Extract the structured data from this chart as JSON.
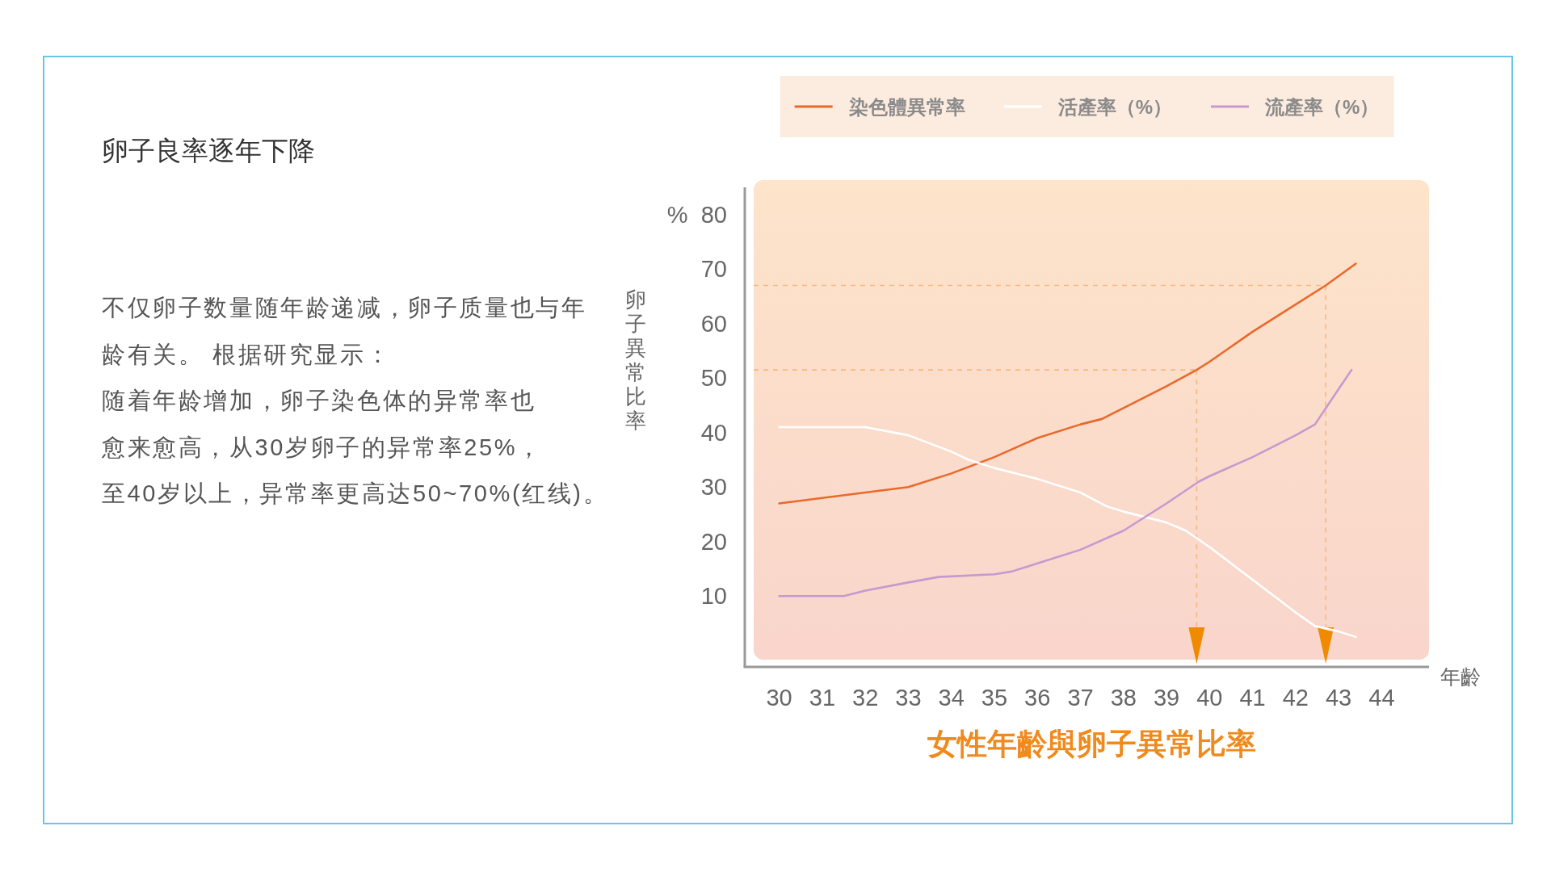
{
  "chart_data": {
    "type": "line",
    "title": "女性年齡與卵子異常比率",
    "xlabel": "年齡",
    "ylabel": "卵子異常比率",
    "xlim": [
      29.2,
      45.1
    ],
    "xticks": [
      30,
      31,
      32,
      33,
      34,
      35,
      36,
      37,
      38,
      39,
      40,
      41,
      42,
      43,
      44
    ],
    "ylim": [
      -3,
      85
    ],
    "yticks": [
      10,
      20,
      30,
      40,
      50,
      60,
      70,
      {
        "value": 80,
        "label": "%  80"
      }
    ],
    "grid": false,
    "legend": "top",
    "marker": "none",
    "line_style": "solid",
    "series": [
      {
        "name": "染色體異常率",
        "color": "#e9692c",
        "x": [
          30,
          31,
          32,
          33,
          34,
          35,
          36,
          37,
          37.5,
          38,
          39,
          39.7,
          40,
          41,
          42,
          42.7,
          43.4
        ],
        "values": [
          27,
          28,
          29,
          30,
          32.5,
          35.5,
          39,
          41.5,
          42.5,
          44.5,
          48.5,
          51.5,
          53,
          58.5,
          63.5,
          67,
          71
        ]
      },
      {
        "name": "活產率（%）",
        "color": "#ffffff",
        "x": [
          30,
          31,
          32,
          33,
          34,
          34.4,
          35,
          36,
          37,
          37.6,
          38,
          39,
          39.45,
          40,
          41,
          42,
          42.45,
          43,
          43.4
        ],
        "values": [
          41,
          41,
          41,
          39.5,
          36.5,
          35,
          33.5,
          31.5,
          29,
          26.5,
          25.5,
          23.5,
          22,
          19,
          13,
          7,
          4.5,
          3.5,
          2.5
        ]
      },
      {
        "name": "流產率（%）",
        "color": "#c799cf",
        "x": [
          30,
          31.5,
          32,
          33,
          33.7,
          35,
          35.4,
          36,
          37,
          38,
          39,
          39.75,
          40,
          41,
          42,
          42.45,
          43,
          43.3
        ],
        "values": [
          10,
          10,
          11,
          12.5,
          13.5,
          14,
          14.5,
          16,
          18.5,
          22,
          27,
          31,
          32,
          35.5,
          39.5,
          41.5,
          48,
          51.5
        ]
      }
    ],
    "ref_lines": [
      {
        "axis": "y",
        "value": 51.5,
        "color": "#f6b880",
        "line_style": "dashed"
      },
      {
        "axis": "y",
        "value": 67,
        "color": "#f6b880",
        "line_style": "dashed"
      },
      {
        "axis": "x",
        "value": 39.7,
        "color": "#f6b880",
        "line_style": "dashed"
      },
      {
        "axis": "x",
        "value": 42.7,
        "color": "#f6b880",
        "line_style": "dashed"
      }
    ],
    "annotations": [
      "卵子良率逐年下降",
      "不仅卵子数量随年龄递减，卵子质量也与年",
      "龄有关。 根据研究显示：",
      "随着年龄增加，卵子染色体的异常率也",
      "愈来愈高，从30岁卵子的异常率25%，",
      "至40岁以上，异常率更高达50~70%(红线)。"
    ]
  }
}
